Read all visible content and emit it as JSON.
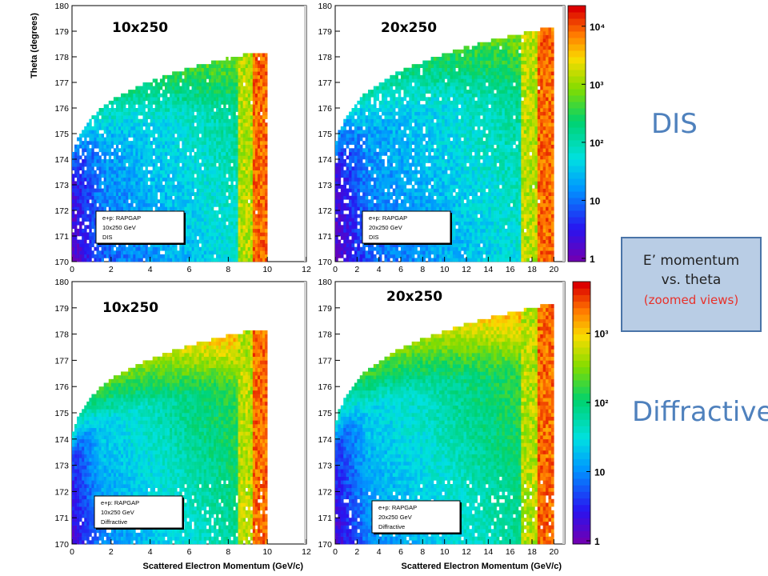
{
  "slide": {
    "dis_label": "DIS",
    "diffractive_label": "Diffractive",
    "info_box": {
      "line1": "E’ momentum",
      "line2": "vs. theta",
      "line3": "(zoomed views)"
    }
  },
  "colors": {
    "accent_text": "#4f81bd",
    "box_fill": "#b9cde5",
    "box_border": "#4a74a8",
    "note_red": "#e8312a"
  },
  "chart_data": [
    {
      "type": "heatmap",
      "title": "10x250",
      "ylabel": "Theta (degrees)",
      "xlabel": "",
      "xlim": [
        0,
        12
      ],
      "ylim": [
        170,
        180
      ],
      "x_ticks": [
        "0",
        "2",
        "4",
        "6",
        "8",
        "10",
        "12"
      ],
      "y_ticks": [
        "170",
        "171",
        "172",
        "173",
        "174",
        "175",
        "176",
        "177",
        "178",
        "179",
        "180"
      ],
      "x_max": 10,
      "edge_theta": 178.2,
      "legend": [
        "e+p: RAPGAP",
        "10x250 GeV",
        "DIS"
      ]
    },
    {
      "type": "heatmap",
      "title": "20x250",
      "ylabel": "",
      "xlabel": "",
      "xlim": [
        0,
        21
      ],
      "ylim": [
        170,
        180
      ],
      "x_ticks": [
        "0",
        "2",
        "4",
        "6",
        "8",
        "10",
        "12",
        "14",
        "16",
        "18",
        "20"
      ],
      "y_ticks": [
        "170",
        "171",
        "172",
        "173",
        "174",
        "175",
        "176",
        "177",
        "178",
        "179",
        "180"
      ],
      "x_max": 20,
      "edge_theta": 179.1,
      "legend": [
        "e+p: RAPGAP",
        "20x250 GeV",
        "DIS"
      ],
      "colorbar_ticks": [
        "1",
        "10",
        "10²",
        "10³",
        "10⁴"
      ]
    },
    {
      "type": "heatmap",
      "title": "10x250",
      "ylabel": "",
      "xlabel": "Scattered Electron Momentum (GeV/c)",
      "xlim": [
        0,
        12
      ],
      "ylim": [
        170,
        180
      ],
      "x_ticks": [
        "0",
        "2",
        "4",
        "6",
        "8",
        "10",
        "12"
      ],
      "y_ticks": [
        "170",
        "171",
        "172",
        "173",
        "174",
        "175",
        "176",
        "177",
        "178",
        "179",
        "180"
      ],
      "x_max": 10,
      "edge_theta": 178.2,
      "legend": [
        "e+p: RAPGAP",
        "10x250 GeV",
        "Diffractive"
      ]
    },
    {
      "type": "heatmap",
      "title": "20x250",
      "ylabel": "",
      "xlabel": "Scattered Electron Momentum (GeV/c)",
      "xlim": [
        0,
        21
      ],
      "ylim": [
        170,
        180
      ],
      "x_ticks": [
        "0",
        "2",
        "4",
        "6",
        "8",
        "10",
        "12",
        "14",
        "16",
        "18",
        "20"
      ],
      "y_ticks": [
        "170",
        "171",
        "172",
        "173",
        "174",
        "175",
        "176",
        "177",
        "178",
        "179",
        "180"
      ],
      "x_max": 20,
      "edge_theta": 179.1,
      "legend": [
        "e+p: RAPGAP",
        "20x250 GeV",
        "Diffractive"
      ],
      "colorbar_ticks": [
        "1",
        "10",
        "10²",
        "10³"
      ]
    }
  ]
}
